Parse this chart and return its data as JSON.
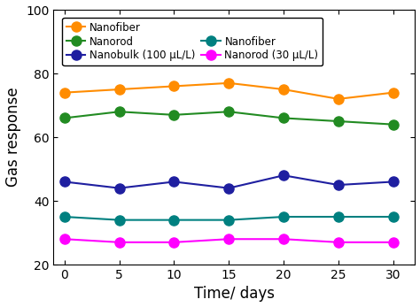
{
  "x": [
    0,
    5,
    10,
    15,
    20,
    25,
    30
  ],
  "series": [
    {
      "label": "Nanofiber",
      "color": "#FF8C00",
      "values": [
        74,
        75,
        76,
        77,
        75,
        72,
        74
      ]
    },
    {
      "label": "Nanorod",
      "color": "#228B22",
      "values": [
        66,
        68,
        67,
        68,
        66,
        65,
        64
      ]
    },
    {
      "label": "Nanobulk (100 μL/L)",
      "color": "#1F1FA0",
      "values": [
        46,
        44,
        46,
        44,
        48,
        45,
        46
      ]
    },
    {
      "label": "Nanofiber",
      "color": "#008080",
      "values": [
        35,
        34,
        34,
        34,
        35,
        35,
        35
      ]
    },
    {
      "label": "Nanorod (30 μL/L)",
      "color": "#FF00FF",
      "values": [
        28,
        27,
        27,
        28,
        28,
        27,
        27
      ]
    }
  ],
  "xlabel": "Time/ days",
  "ylabel": "Gas response",
  "ylim": [
    20,
    100
  ],
  "xlim": [
    -1,
    32
  ],
  "xticks": [
    0,
    5,
    10,
    15,
    20,
    25,
    30
  ],
  "yticks": [
    20,
    40,
    60,
    80,
    100
  ],
  "marker": "o",
  "markersize": 8,
  "linewidth": 1.5,
  "legend_fontsize": 8.5,
  "axis_fontsize": 12,
  "tick_fontsize": 10,
  "figsize": [
    4.74,
    3.47
  ],
  "dpi": 100
}
